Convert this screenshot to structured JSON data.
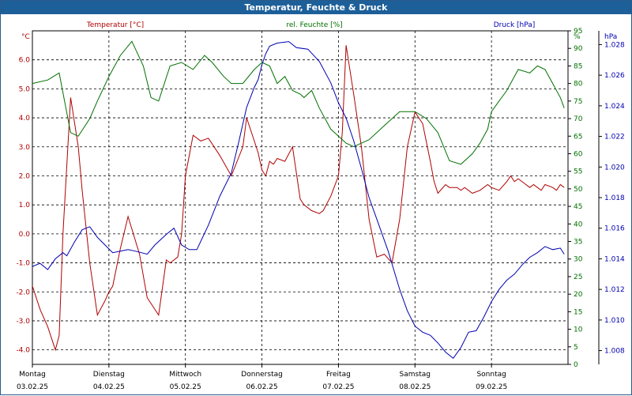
{
  "window": {
    "title": "Temperatur, Feuchte & Druck"
  },
  "colors": {
    "temperature": "#b00000",
    "humidity": "#007000",
    "pressure": "#0000b0",
    "titlebar": "#1d5f99"
  },
  "chart_data": {
    "type": "line",
    "title": "Temperatur, Feuchte & Druck",
    "grid": true,
    "x_categories": [
      {
        "day": "Montag",
        "date": "03.02.25"
      },
      {
        "day": "Dienstag",
        "date": "04.02.25"
      },
      {
        "day": "Mittwoch",
        "date": "05.02.25"
      },
      {
        "day": "Donnerstag",
        "date": "06.02.25"
      },
      {
        "day": "Freitag",
        "date": "07.02.25"
      },
      {
        "day": "Samstag",
        "date": "08.02.25"
      },
      {
        "day": "Sonntag",
        "date": "09.02.25"
      }
    ],
    "x_range_days": [
      0,
      7
    ],
    "axes": {
      "temperature": {
        "unit_label": "°C",
        "min": -4.5,
        "max": 7,
        "ticks": [
          "-4.0",
          "-3.0",
          "-2.0",
          "-1.0",
          "0.0",
          "1.0",
          "2.0",
          "3.0",
          "4.0",
          "5.0",
          "6.0"
        ],
        "tick_values": [
          -4,
          -3,
          -2,
          -1,
          0,
          1,
          2,
          3,
          4,
          5,
          6
        ]
      },
      "humidity": {
        "unit_label": "%",
        "min": 0,
        "max": 95,
        "ticks": [
          "0",
          "5",
          "10",
          "15",
          "20",
          "25",
          "30",
          "35",
          "40",
          "45",
          "50",
          "55",
          "60",
          "65",
          "70",
          "75",
          "80",
          "85",
          "90",
          "95"
        ],
        "tick_values": [
          0,
          5,
          10,
          15,
          20,
          25,
          30,
          35,
          40,
          45,
          50,
          55,
          60,
          65,
          70,
          75,
          80,
          85,
          90,
          95
        ]
      },
      "pressure": {
        "unit_label": "hPa",
        "min": 1007.1,
        "max": 1028.9,
        "ticks": [
          "1.008",
          "1.010",
          "1.012",
          "1.014",
          "1.016",
          "1.018",
          "1.020",
          "1.022",
          "1.024",
          "1.026",
          "1.028"
        ],
        "tick_values": [
          1008,
          1010,
          1012,
          1014,
          1016,
          1018,
          1020,
          1022,
          1024,
          1026,
          1028
        ]
      }
    },
    "series": [
      {
        "name": "Temperatur [°C]",
        "axis": "temperature",
        "x": [
          0,
          0.1,
          0.2,
          0.3,
          0.35,
          0.4,
          0.5,
          0.6,
          0.65,
          0.75,
          0.85,
          0.95,
          1.0,
          1.05,
          1.15,
          1.25,
          1.4,
          1.5,
          1.55,
          1.65,
          1.75,
          1.8,
          1.9,
          1.95,
          2.0,
          2.1,
          2.2,
          2.3,
          2.45,
          2.6,
          2.75,
          2.8,
          2.9,
          2.95,
          3.0,
          3.05,
          3.1,
          3.15,
          3.2,
          3.3,
          3.4,
          3.5,
          3.55,
          3.65,
          3.75,
          3.8,
          3.9,
          4.0,
          4.05,
          4.1,
          4.2,
          4.3,
          4.4,
          4.5,
          4.6,
          4.7,
          4.8,
          4.9,
          5.0,
          5.1,
          5.2,
          5.25,
          5.3,
          5.4,
          5.45,
          5.55,
          5.6,
          5.65,
          5.75,
          5.85,
          5.95,
          6.0,
          6.1,
          6.2,
          6.25,
          6.3,
          6.35,
          6.45,
          6.5,
          6.55,
          6.6,
          6.65,
          6.7,
          6.8,
          6.85,
          6.9,
          6.95
        ],
        "y": [
          -1.8,
          -2.6,
          -3.2,
          -4.0,
          -3.5,
          0.0,
          4.7,
          3.0,
          1.5,
          -1.0,
          -2.8,
          -2.3,
          -2.0,
          -1.8,
          -0.5,
          0.6,
          -0.7,
          -2.2,
          -2.4,
          -2.8,
          -0.9,
          -1.0,
          -0.8,
          0.0,
          2.0,
          3.4,
          3.2,
          3.3,
          2.7,
          2.0,
          3.0,
          4.0,
          3.2,
          2.8,
          2.2,
          2.0,
          2.5,
          2.4,
          2.6,
          2.5,
          3.0,
          1.2,
          1.0,
          0.8,
          0.7,
          0.8,
          1.3,
          2.0,
          3.5,
          6.5,
          4.8,
          3.0,
          0.5,
          -0.8,
          -0.7,
          -1.0,
          0.5,
          3.0,
          4.2,
          3.8,
          2.5,
          1.8,
          1.4,
          1.7,
          1.6,
          1.6,
          1.5,
          1.6,
          1.4,
          1.5,
          1.7,
          1.6,
          1.5,
          1.8,
          2.0,
          1.8,
          1.9,
          1.7,
          1.6,
          1.7,
          1.6,
          1.5,
          1.7,
          1.6,
          1.5,
          1.7,
          1.6
        ]
      },
      {
        "name": "rel. Feuchte [%]",
        "axis": "humidity",
        "x": [
          0,
          0.2,
          0.35,
          0.5,
          0.6,
          0.75,
          0.85,
          1.0,
          1.15,
          1.3,
          1.45,
          1.55,
          1.65,
          1.8,
          1.95,
          2.1,
          2.25,
          2.35,
          2.5,
          2.6,
          2.75,
          2.9,
          3.0,
          3.1,
          3.2,
          3.3,
          3.4,
          3.5,
          3.55,
          3.65,
          3.75,
          3.85,
          3.9,
          4.0,
          4.1,
          4.2,
          4.3,
          4.4,
          4.5,
          4.6,
          4.7,
          4.8,
          4.9,
          5.0,
          5.15,
          5.3,
          5.45,
          5.6,
          5.75,
          5.85,
          5.95,
          6.0,
          6.1,
          6.2,
          6.35,
          6.5,
          6.6,
          6.7,
          6.8,
          6.9,
          6.95
        ],
        "y": [
          80,
          81,
          83,
          66,
          65,
          70,
          75,
          82,
          88,
          92,
          85,
          76,
          75,
          85,
          86,
          84,
          88,
          86,
          82,
          80,
          80,
          84,
          86,
          85,
          80,
          82,
          78,
          77,
          76,
          78,
          73,
          69,
          67,
          65,
          63,
          62,
          63,
          64,
          66,
          68,
          70,
          72,
          72,
          72,
          70,
          66,
          58,
          57,
          60,
          63,
          67,
          72,
          75,
          78,
          84,
          83,
          85,
          84,
          80,
          76,
          73
        ]
      },
      {
        "name": "Druck [hPa]",
        "axis": "pressure",
        "x": [
          0,
          0.1,
          0.2,
          0.3,
          0.4,
          0.45,
          0.55,
          0.65,
          0.75,
          0.85,
          0.95,
          1.05,
          1.15,
          1.25,
          1.35,
          1.5,
          1.6,
          1.75,
          1.85,
          1.95,
          2.05,
          2.15,
          2.3,
          2.45,
          2.6,
          2.7,
          2.8,
          2.9,
          2.95,
          3.0,
          3.05,
          3.1,
          3.2,
          3.35,
          3.45,
          3.6,
          3.75,
          3.9,
          4.0,
          4.1,
          4.2,
          4.3,
          4.4,
          4.5,
          4.65,
          4.8,
          4.9,
          5.0,
          5.1,
          5.2,
          5.3,
          5.4,
          5.5,
          5.6,
          5.7,
          5.8,
          5.9,
          6.0,
          6.1,
          6.2,
          6.3,
          6.4,
          6.5,
          6.6,
          6.7,
          6.8,
          6.9,
          6.95
        ],
        "y": [
          1013.5,
          1013.7,
          1013.3,
          1014.0,
          1014.4,
          1014.2,
          1015.1,
          1015.9,
          1016.1,
          1015.4,
          1014.9,
          1014.4,
          1014.5,
          1014.6,
          1014.5,
          1014.3,
          1014.9,
          1015.6,
          1016.0,
          1014.9,
          1014.6,
          1014.6,
          1016.2,
          1018.1,
          1019.6,
          1021.7,
          1023.9,
          1025.2,
          1025.7,
          1026.7,
          1027.4,
          1027.9,
          1028.1,
          1028.2,
          1027.8,
          1027.7,
          1026.9,
          1025.5,
          1024.2,
          1023.2,
          1021.7,
          1019.9,
          1018.0,
          1016.6,
          1014.5,
          1012.0,
          1010.6,
          1009.6,
          1009.2,
          1009.0,
          1008.5,
          1007.9,
          1007.5,
          1008.2,
          1009.2,
          1009.3,
          1010.2,
          1011.2,
          1012.0,
          1012.6,
          1013.0,
          1013.6,
          1014.1,
          1014.4,
          1014.8,
          1014.6,
          1014.7,
          1014.3
        ]
      }
    ]
  }
}
